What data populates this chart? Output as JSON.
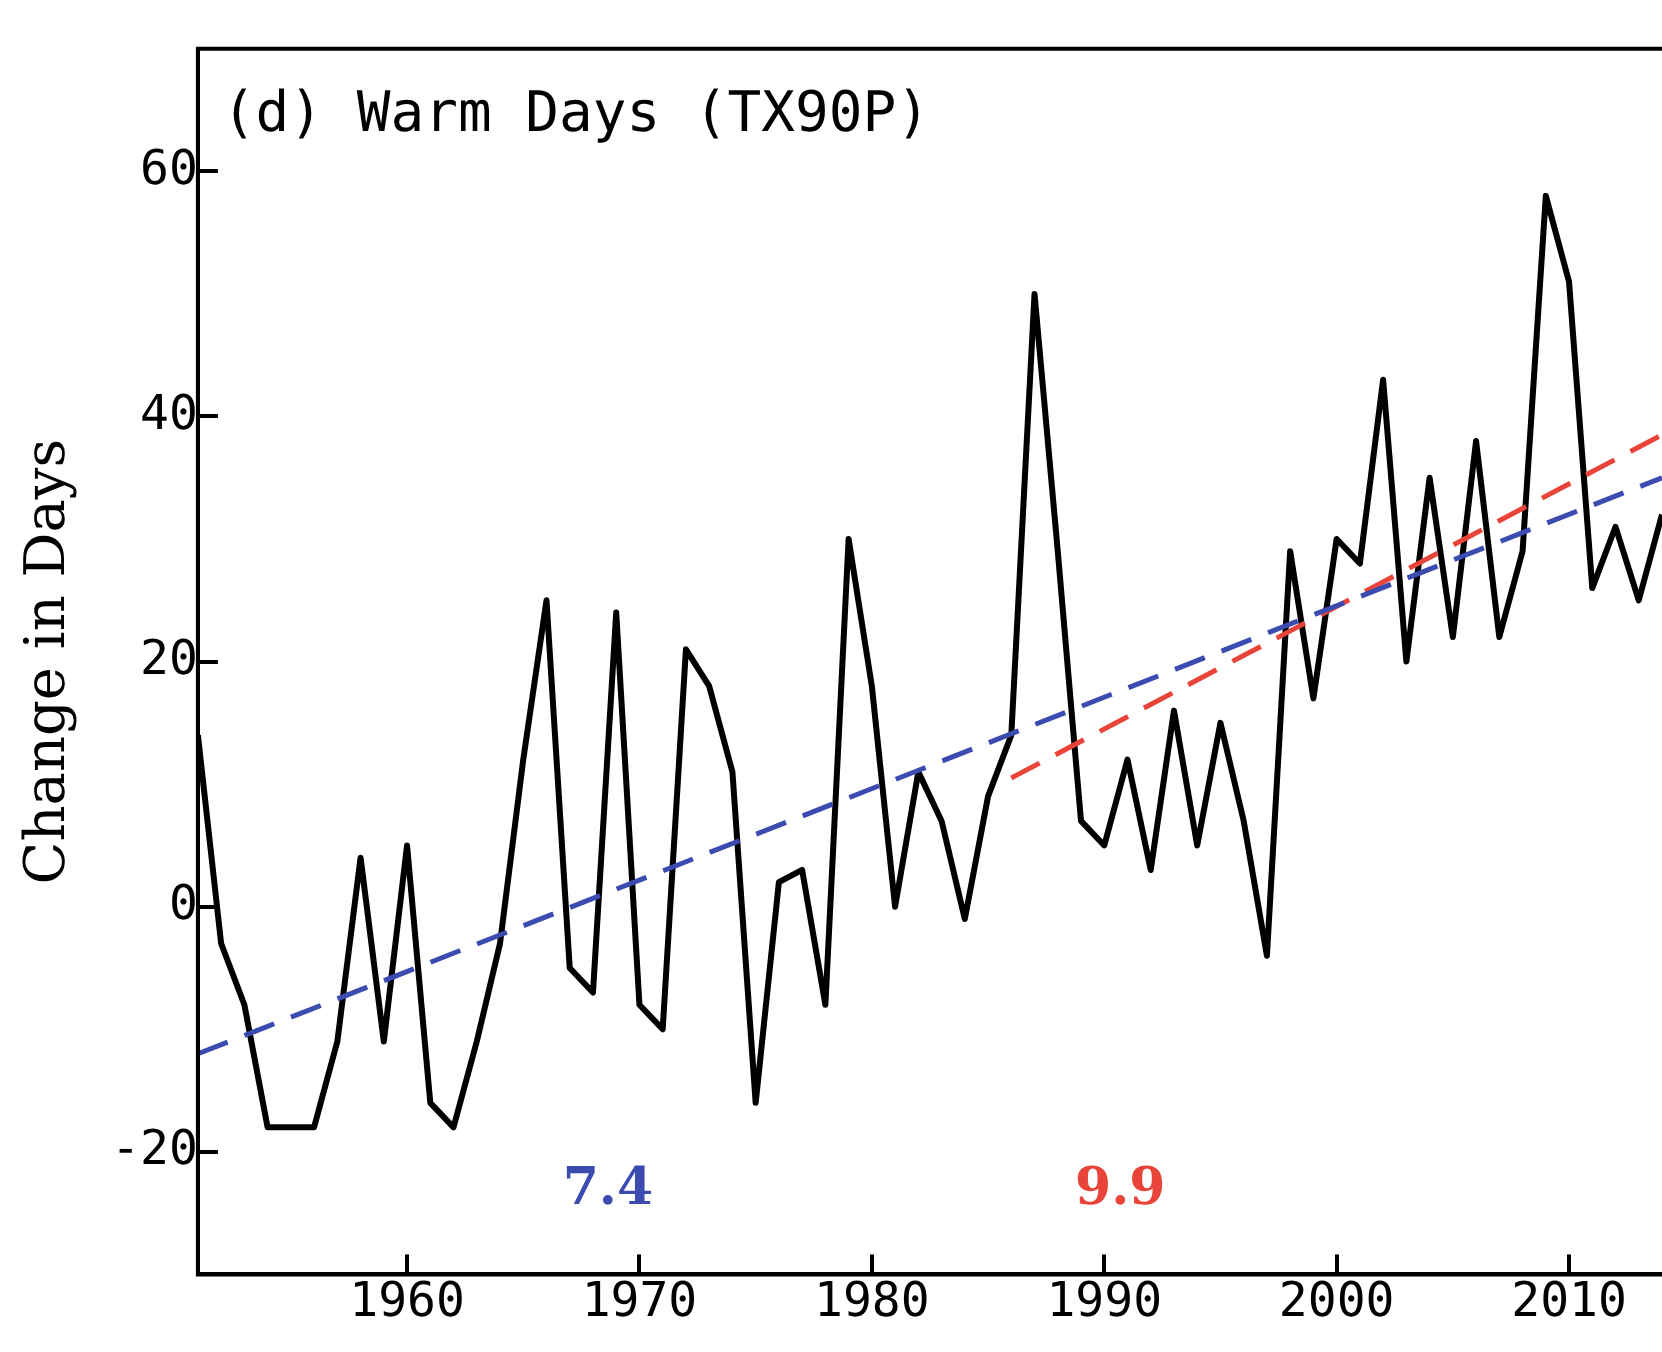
{
  "chart_data": {
    "type": "line",
    "title": "(d) Warm Days (TX90P)",
    "ylabel": "Change in Days",
    "x": [
      1951,
      1952,
      1953,
      1954,
      1955,
      1956,
      1957,
      1958,
      1959,
      1960,
      1961,
      1962,
      1963,
      1964,
      1965,
      1966,
      1967,
      1968,
      1969,
      1970,
      1971,
      1972,
      1973,
      1974,
      1975,
      1976,
      1977,
      1978,
      1979,
      1980,
      1981,
      1982,
      1983,
      1984,
      1985,
      1986,
      1987,
      1988,
      1989,
      1990,
      1991,
      1992,
      1993,
      1994,
      1995,
      1996,
      1997,
      1998,
      1999,
      2000,
      2001,
      2002,
      2003,
      2004,
      2005,
      2006,
      2007,
      2008,
      2009,
      2010,
      2011,
      2012,
      2013,
      2014
    ],
    "series": [
      {
        "color": "#000000",
        "values": [
          14,
          -3,
          -8,
          -18,
          -18,
          -18,
          -11,
          4,
          -11,
          5,
          -16,
          -18,
          -11,
          -3,
          12,
          25,
          -5,
          -7,
          24,
          -8,
          -10,
          21,
          18,
          11,
          -16,
          2,
          3,
          -8,
          30,
          18,
          0,
          11,
          7,
          -1,
          9,
          14,
          50,
          29,
          7,
          5,
          12,
          3,
          16,
          5,
          15,
          7,
          -4,
          29,
          17,
          30,
          28,
          43,
          20,
          35,
          22,
          38,
          22,
          29,
          58,
          51,
          26,
          31,
          25,
          32
        ]
      },
      {
        "type": "line",
        "line_style": "dashed",
        "color": "#3b4bb0",
        "x": [
          1951,
          2014
        ],
        "values": [
          -12,
          35
        ]
      },
      {
        "type": "line",
        "line_style": "dashed",
        "color": "#e8443a",
        "x": [
          1986,
          2014
        ],
        "values": [
          10.5,
          38.5
        ]
      }
    ],
    "annotations": [
      "7.4",
      "9.9"
    ],
    "xlim": [
      1951,
      2014
    ],
    "xticks": [
      1960,
      1970,
      1980,
      1990,
      2000,
      2010
    ],
    "ylim": [
      -30,
      70
    ],
    "yticks": [
      -20,
      0,
      20,
      40,
      60
    ],
    "grid": false,
    "legend": false,
    "marker": "none"
  }
}
